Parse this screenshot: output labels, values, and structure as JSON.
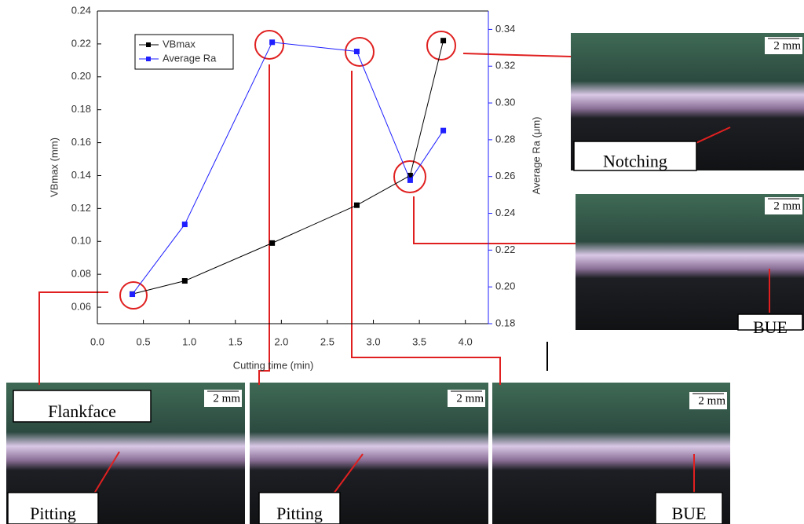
{
  "chart_data": {
    "type": "line",
    "x_label": "Cutting time (min)",
    "y_label": "VBmax (mm)",
    "y2_label": "Average Ra (μm)",
    "x": [
      0.38,
      0.95,
      1.9,
      2.82,
      3.4,
      3.76
    ],
    "series": [
      {
        "name": "VBmax",
        "color": "#000000",
        "values": [
          0.068,
          0.076,
          0.099,
          0.122,
          0.14,
          0.222
        ]
      },
      {
        "name": "Average Ra",
        "color": "#1f1fff",
        "axis": "y2",
        "values": [
          0.196,
          0.234,
          0.333,
          0.328,
          0.258,
          0.285
        ]
      }
    ],
    "xlim": [
      0,
      4.25
    ],
    "xticks": [
      {
        "value": 0,
        "label": "0.0"
      },
      0.5,
      {
        "value": 1,
        "label": "1.0"
      },
      1.5,
      {
        "value": 2,
        "label": "2.0"
      },
      2.5,
      {
        "value": 3,
        "label": "3.0"
      },
      3.5,
      {
        "value": 4,
        "label": "4.0"
      }
    ],
    "ylim": [
      0.05,
      0.24
    ],
    "yticks": [
      0.06,
      0.08,
      {
        "value": 0.1,
        "label": "0.10"
      },
      0.12,
      0.14,
      0.16,
      0.18,
      {
        "value": 0.2,
        "label": "0.20"
      },
      0.22,
      0.24
    ],
    "y2lim": [
      0.18,
      0.35
    ],
    "y2ticks": [
      0.18,
      {
        "value": 0.2,
        "label": "0.20"
      },
      0.22,
      0.24,
      0.26,
      0.28,
      {
        "value": 0.3,
        "label": "0.30"
      },
      0.32,
      0.34
    ],
    "legend": "upper left",
    "annotations": [
      "Notching",
      "BUE",
      "Flankface",
      "Pitting",
      "Pitting",
      "BUE"
    ],
    "scale_labels": [
      "2 mm",
      "2 mm",
      "2 mm",
      "2 mm",
      "2 mm"
    ]
  }
}
